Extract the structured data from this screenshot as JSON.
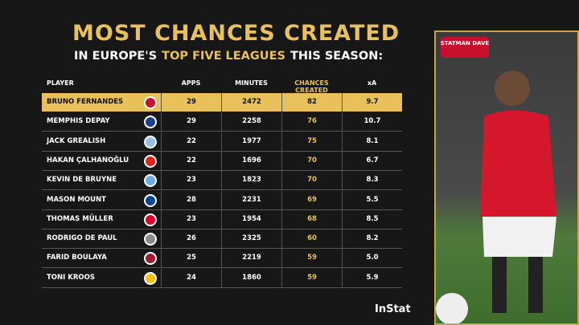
{
  "header": {
    "title": "MOST CHANCES CREATED",
    "subtitle_parts": [
      {
        "text": "IN EUROPE'S",
        "highlight": false
      },
      {
        "text": "TOP FIVE LEAGUES",
        "highlight": true
      },
      {
        "text": "THIS SEASON:",
        "highlight": false
      }
    ]
  },
  "table": {
    "columns": [
      "PLAYER",
      "APPS",
      "MINUTES",
      "CHANCES CREATED",
      "xA"
    ],
    "highlight_column": 3,
    "rows": [
      {
        "cells": [
          "BRUNO FERNANDES",
          "29",
          "2472",
          "82",
          "9.7"
        ],
        "highlighted": true,
        "badge_color": "#c8102e"
      },
      {
        "cells": [
          "MEMPHIS DEPAY",
          "29",
          "2258",
          "76",
          "10.7"
        ],
        "highlighted": false,
        "badge_color": "#1c3f94"
      },
      {
        "cells": [
          "JACK GREALISH",
          "22",
          "1977",
          "75",
          "8.1"
        ],
        "highlighted": false,
        "badge_color": "#95bfe5"
      },
      {
        "cells": [
          "HAKAN ÇALHANOĞLU",
          "22",
          "1696",
          "70",
          "6.7"
        ],
        "highlighted": false,
        "badge_color": "#e2231a"
      },
      {
        "cells": [
          "KEVIN DE BRUYNE",
          "23",
          "1823",
          "70",
          "8.3"
        ],
        "highlighted": false,
        "badge_color": "#6cabdd"
      },
      {
        "cells": [
          "MASON MOUNT",
          "28",
          "2231",
          "69",
          "5.5"
        ],
        "highlighted": false,
        "badge_color": "#034694"
      },
      {
        "cells": [
          "THOMAS MÜLLER",
          "23",
          "1954",
          "68",
          "8.5"
        ],
        "highlighted": false,
        "badge_color": "#dc052d"
      },
      {
        "cells": [
          "RODRIGO DE PAUL",
          "26",
          "2325",
          "60",
          "8.2"
        ],
        "highlighted": false,
        "badge_color": "#8a8a8a"
      },
      {
        "cells": [
          "FARID BOULAYA",
          "25",
          "2219",
          "59",
          "5.0"
        ],
        "highlighted": false,
        "badge_color": "#a6192e"
      },
      {
        "cells": [
          "TONI KROOS",
          "24",
          "1860",
          "59",
          "5.9"
        ],
        "highlighted": false,
        "badge_color": "#febe10"
      }
    ]
  },
  "branding": {
    "author": "STATMAN DAVE",
    "source": "InStat"
  }
}
